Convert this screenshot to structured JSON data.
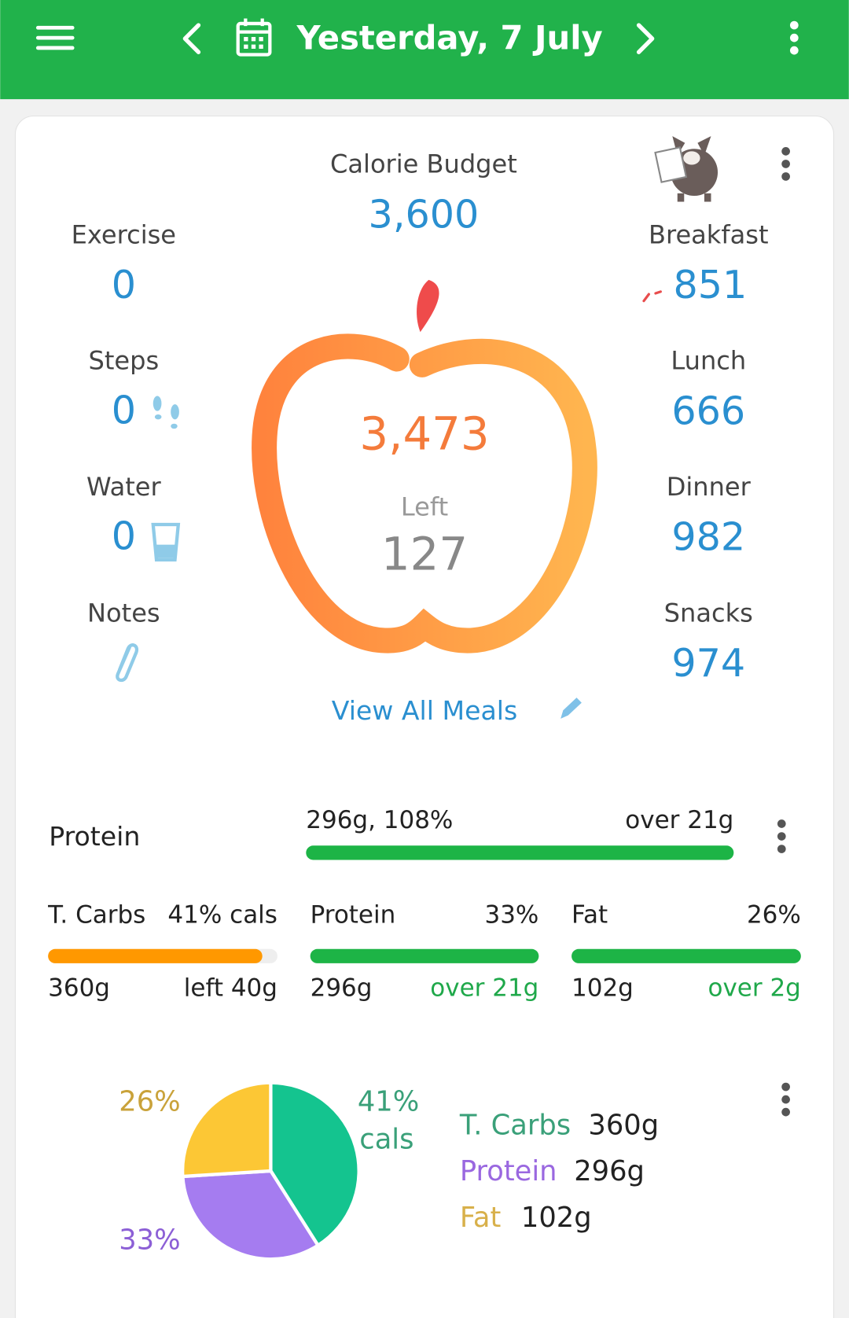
{
  "header": {
    "title": "Yesterday, 7 July"
  },
  "summary": {
    "budget_label": "Calorie Budget",
    "budget": "3,600",
    "consumed": "3,473",
    "left_label": "Left",
    "left": "127",
    "view_all": "View All Meals"
  },
  "left_stats": [
    {
      "label": "Exercise",
      "value": "0"
    },
    {
      "label": "Steps",
      "value": "0"
    },
    {
      "label": "Water",
      "value": "0"
    },
    {
      "label": "Notes"
    }
  ],
  "meals": [
    {
      "label": "Breakfast",
      "value": "851"
    },
    {
      "label": "Lunch",
      "value": "666"
    },
    {
      "label": "Dinner",
      "value": "982"
    },
    {
      "label": "Snacks",
      "value": "974"
    }
  ],
  "protein_goal": {
    "label": "Protein",
    "amount": "296g, 108%",
    "status": "over 21g"
  },
  "macros": [
    {
      "name": "T. Carbs",
      "percent": "41% cals",
      "grams": "360g",
      "status": "left 40g"
    },
    {
      "name": "Protein",
      "percent": "33%",
      "grams": "296g",
      "status": "over 21g"
    },
    {
      "name": "Fat",
      "percent": "26%",
      "grams": "102g",
      "status": "over 2g"
    }
  ],
  "pie": {
    "slices": [
      {
        "value": 41,
        "label": "41%",
        "note": "cals",
        "color": "#14c48f"
      },
      {
        "value": 33,
        "label": "33%",
        "color": "#a57cf0"
      },
      {
        "value": 26,
        "label": "26%",
        "color": "#fcc735"
      }
    ]
  },
  "legend": [
    {
      "name": "T. Carbs",
      "grams": "360g"
    },
    {
      "name": "Protein",
      "grams": "296g"
    },
    {
      "name": "Fat",
      "grams": "102g"
    }
  ]
}
